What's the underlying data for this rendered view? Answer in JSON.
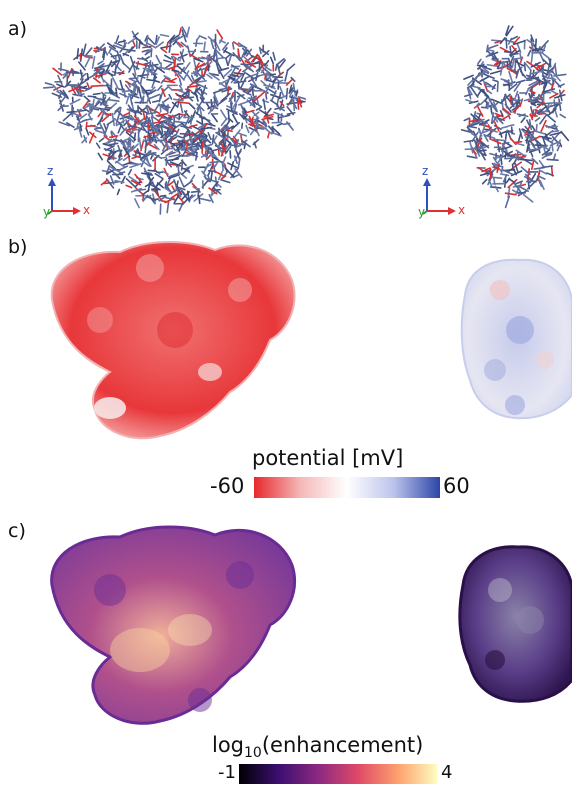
{
  "panels": [
    {
      "label": "a)"
    },
    {
      "label": "b)"
    },
    {
      "label": "c)"
    }
  ],
  "axes": {
    "z": "z",
    "y": "y",
    "x": "x"
  },
  "potential_colorbar": {
    "title": "potential [mV]",
    "min_label": "-60",
    "max_label": "60",
    "colors": [
      "#e8282c",
      "#f5b8b8",
      "#ffffff",
      "#bcc4ec",
      "#2c45a8"
    ]
  },
  "enhancement_colorbar": {
    "title_prefix": "log",
    "title_sub": "10",
    "title_suffix": "(enhancement)",
    "min_label": "-1",
    "max_label": "4",
    "colors": [
      "#000004",
      "#3b0f70",
      "#8c2981",
      "#de4968",
      "#fe9f6d",
      "#fcfdbf"
    ]
  },
  "colors": {
    "axis_z": "#3050c0",
    "axis_y": "#2a9a2a",
    "axis_x": "#e03030"
  }
}
